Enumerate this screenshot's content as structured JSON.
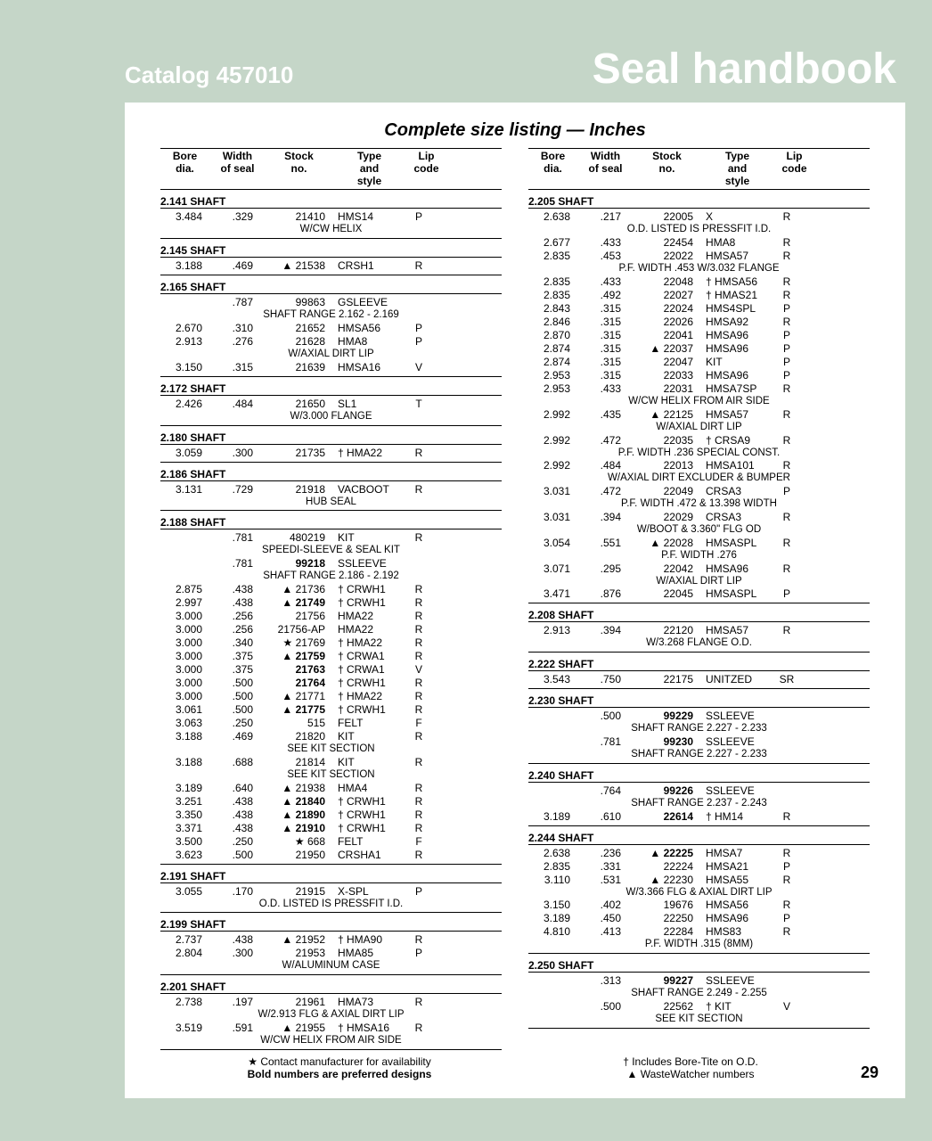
{
  "header": {
    "catalog": "Catalog 457010",
    "title": "Seal handbook"
  },
  "section_title": "Complete size listing — Inches",
  "page_number": "29",
  "columns_header": {
    "c1": "Bore\ndia.",
    "c2": "Width\nof seal",
    "c3": "Stock\nno.",
    "c4": "Type\nand\nstyle",
    "c5": "Lip\ncode"
  },
  "legend": {
    "star": "★ Contact manufacturer for availability",
    "bold": "Bold numbers are preferred designs",
    "dagger": "† Includes Bore-Tite on O.D.",
    "triangle": "▲ WasteWatcher numbers"
  },
  "left": [
    {
      "title": "2.141 SHAFT",
      "rows": [
        {
          "b": "3.484",
          "w": ".329",
          "s": "21410",
          "t": "HMS14",
          "l": "P"
        },
        {
          "note": "W/CW HELIX"
        }
      ]
    },
    {
      "title": "2.145 SHAFT",
      "rows": [
        {
          "b": "3.188",
          "w": ".469",
          "s": "▲ 21538",
          "t": "CRSH1",
          "l": "R"
        }
      ]
    },
    {
      "title": "2.165 SHAFT",
      "rows": [
        {
          "b": "",
          "w": ".787",
          "s": "99863",
          "t": "GSLEEVE",
          "l": ""
        },
        {
          "note": "SHAFT RANGE 2.162 - 2.169"
        },
        {
          "b": "2.670",
          "w": ".310",
          "s": "21652",
          "t": "HMSA56",
          "l": "P"
        },
        {
          "b": "2.913",
          "w": ".276",
          "s": "21628",
          "t": "HMA8",
          "l": "P"
        },
        {
          "note": "W/AXIAL DIRT LIP"
        },
        {
          "b": "3.150",
          "w": ".315",
          "s": "21639",
          "t": "HMSA16",
          "l": "V"
        }
      ]
    },
    {
      "title": "2.172 SHAFT",
      "rows": [
        {
          "b": "2.426",
          "w": ".484",
          "s": "21650",
          "t": "SL1",
          "l": "T"
        },
        {
          "note": "W/3.000 FLANGE"
        }
      ]
    },
    {
      "title": "2.180 SHAFT",
      "rows": [
        {
          "b": "3.059",
          "w": ".300",
          "s": "21735",
          "t": "† HMA22",
          "l": "R"
        }
      ]
    },
    {
      "title": "2.186 SHAFT",
      "rows": [
        {
          "b": "3.131",
          "w": ".729",
          "s": "21918",
          "t": "VACBOOT",
          "l": "R"
        },
        {
          "note": "HUB SEAL"
        }
      ]
    },
    {
      "title": "2.188 SHAFT",
      "rows": [
        {
          "b": "",
          "w": ".781",
          "s": "480219",
          "t": "KIT",
          "l": "R"
        },
        {
          "note": "SPEEDI-SLEEVE & SEAL KIT"
        },
        {
          "b": "",
          "w": ".781",
          "s": "99218",
          "t": "SSLEEVE",
          "l": "",
          "sbold": true
        },
        {
          "note": "SHAFT RANGE 2.186 - 2.192"
        },
        {
          "b": "2.875",
          "w": ".438",
          "s": "▲ 21736",
          "t": "† CRWH1",
          "l": "R"
        },
        {
          "b": "2.997",
          "w": ".438",
          "s": "▲ 21749",
          "t": "† CRWH1",
          "l": "R",
          "sbold": true
        },
        {
          "b": "3.000",
          "w": ".256",
          "s": "21756",
          "t": "HMA22",
          "l": "R"
        },
        {
          "b": "3.000",
          "w": ".256",
          "s": "21756-AP",
          "t": "HMA22",
          "l": "R"
        },
        {
          "b": "3.000",
          "w": ".340",
          "s": "★ 21769",
          "t": "† HMA22",
          "l": "R"
        },
        {
          "b": "3.000",
          "w": ".375",
          "s": "▲ 21759",
          "t": "† CRWA1",
          "l": "R",
          "sbold": true
        },
        {
          "b": "3.000",
          "w": ".375",
          "s": "21763",
          "t": "† CRWA1",
          "l": "V",
          "sbold": true
        },
        {
          "b": "3.000",
          "w": ".500",
          "s": "21764",
          "t": "† CRWH1",
          "l": "R",
          "sbold": true
        },
        {
          "b": "3.000",
          "w": ".500",
          "s": "▲ 21771",
          "t": "† HMA22",
          "l": "R"
        },
        {
          "b": "3.061",
          "w": ".500",
          "s": "▲ 21775",
          "t": "† CRWH1",
          "l": "R",
          "sbold": true
        },
        {
          "b": "3.063",
          "w": ".250",
          "s": "515",
          "t": "FELT",
          "l": "F"
        },
        {
          "b": "3.188",
          "w": ".469",
          "s": "21820",
          "t": "KIT",
          "l": "R"
        },
        {
          "note": "SEE KIT SECTION"
        },
        {
          "b": "3.188",
          "w": ".688",
          "s": "21814",
          "t": "KIT",
          "l": "R"
        },
        {
          "note": "SEE KIT SECTION"
        },
        {
          "b": "3.189",
          "w": ".640",
          "s": "▲ 21938",
          "t": "HMA4",
          "l": "R"
        },
        {
          "b": "3.251",
          "w": ".438",
          "s": "▲ 21840",
          "t": "† CRWH1",
          "l": "R",
          "sbold": true
        },
        {
          "b": "3.350",
          "w": ".438",
          "s": "▲ 21890",
          "t": "† CRWH1",
          "l": "R",
          "sbold": true
        },
        {
          "b": "3.371",
          "w": ".438",
          "s": "▲ 21910",
          "t": "† CRWH1",
          "l": "R",
          "sbold": true
        },
        {
          "b": "3.500",
          "w": ".250",
          "s": "★ 668",
          "t": "FELT",
          "l": "F"
        },
        {
          "b": "3.623",
          "w": ".500",
          "s": "21950",
          "t": "CRSHA1",
          "l": "R"
        }
      ]
    },
    {
      "title": "2.191 SHAFT",
      "rows": [
        {
          "b": "3.055",
          "w": ".170",
          "s": "21915",
          "t": "X-SPL",
          "l": "P"
        },
        {
          "note": "O.D. LISTED IS PRESSFIT I.D."
        }
      ]
    },
    {
      "title": "2.199 SHAFT",
      "rows": [
        {
          "b": "2.737",
          "w": ".438",
          "s": "▲ 21952",
          "t": "† HMA90",
          "l": "R"
        },
        {
          "b": "2.804",
          "w": ".300",
          "s": "21953",
          "t": "HMA85",
          "l": "P"
        },
        {
          "note": "W/ALUMINUM CASE"
        }
      ]
    },
    {
      "title": "2.201 SHAFT",
      "rows": [
        {
          "b": "2.738",
          "w": ".197",
          "s": "21961",
          "t": "HMA73",
          "l": "R"
        },
        {
          "note": "W/2.913 FLG & AXIAL DIRT LIP"
        },
        {
          "b": "3.519",
          "w": ".591",
          "s": "▲ 21955",
          "t": "† HMSA16",
          "l": "R"
        },
        {
          "note": "W/CW HELIX FROM AIR SIDE"
        }
      ]
    }
  ],
  "right": [
    {
      "title": "2.205 SHAFT",
      "rows": [
        {
          "b": "2.638",
          "w": ".217",
          "s": "22005",
          "t": "X",
          "l": "R"
        },
        {
          "note": "O.D. LISTED IS PRESSFIT I.D."
        },
        {
          "b": "2.677",
          "w": ".433",
          "s": "22454",
          "t": "HMA8",
          "l": "R"
        },
        {
          "b": "2.835",
          "w": ".453",
          "s": "22022",
          "t": "HMSA57",
          "l": "R"
        },
        {
          "note": "P.F. WIDTH .453 W/3.032 FLANGE"
        },
        {
          "b": "2.835",
          "w": ".433",
          "s": "22048",
          "t": "† HMSA56",
          "l": "R"
        },
        {
          "b": "2.835",
          "w": ".492",
          "s": "22027",
          "t": "† HMAS21",
          "l": "R"
        },
        {
          "b": "2.843",
          "w": ".315",
          "s": "22024",
          "t": "HMS4SPL",
          "l": "P"
        },
        {
          "b": "2.846",
          "w": ".315",
          "s": "22026",
          "t": "HMSA92",
          "l": "R"
        },
        {
          "b": "2.870",
          "w": ".315",
          "s": "22041",
          "t": "HMSA96",
          "l": "P"
        },
        {
          "b": "2.874",
          "w": ".315",
          "s": "▲ 22037",
          "t": "HMSA96",
          "l": "P"
        },
        {
          "b": "2.874",
          "w": ".315",
          "s": "22047",
          "t": "KIT",
          "l": "P"
        },
        {
          "b": "2.953",
          "w": ".315",
          "s": "22033",
          "t": "HMSA96",
          "l": "P"
        },
        {
          "b": "2.953",
          "w": ".433",
          "s": "22031",
          "t": "HMSA7SP",
          "l": "R"
        },
        {
          "note": "W/CW HELIX FROM AIR SIDE"
        },
        {
          "b": "2.992",
          "w": ".435",
          "s": "▲ 22125",
          "t": "HMSA57",
          "l": "R"
        },
        {
          "note": "W/AXIAL DIRT LIP"
        },
        {
          "b": "2.992",
          "w": ".472",
          "s": "22035",
          "t": "† CRSA9",
          "l": "R"
        },
        {
          "note": "P.F. WIDTH .236 SPECIAL CONST."
        },
        {
          "b": "2.992",
          "w": ".484",
          "s": "22013",
          "t": "HMSA101",
          "l": "R"
        },
        {
          "note": "W/AXIAL DIRT EXCLUDER & BUMPER"
        },
        {
          "b": "3.031",
          "w": ".472",
          "s": "22049",
          "t": "CRSA3",
          "l": "P"
        },
        {
          "note": "P.F. WIDTH .472 & 13.398 WIDTH"
        },
        {
          "b": "3.031",
          "w": ".394",
          "s": "22029",
          "t": "CRSA3",
          "l": "R"
        },
        {
          "note": "W/BOOT & 3.360\" FLG OD"
        },
        {
          "b": "3.054",
          "w": ".551",
          "s": "▲ 22028",
          "t": "HMSASPL",
          "l": "R"
        },
        {
          "note": "P.F. WIDTH .276"
        },
        {
          "b": "3.071",
          "w": ".295",
          "s": "22042",
          "t": "HMSA96",
          "l": "R"
        },
        {
          "note": "W/AXIAL DIRT LIP"
        },
        {
          "b": "3.471",
          "w": ".876",
          "s": "22045",
          "t": "HMSASPL",
          "l": "P"
        }
      ]
    },
    {
      "title": "2.208 SHAFT",
      "rows": [
        {
          "b": "2.913",
          "w": ".394",
          "s": "22120",
          "t": "HMSA57",
          "l": "R"
        },
        {
          "note": "W/3.268 FLANGE O.D."
        }
      ]
    },
    {
      "title": "2.222 SHAFT",
      "rows": [
        {
          "b": "3.543",
          "w": ".750",
          "s": "22175",
          "t": "UNITZED",
          "l": "SR"
        }
      ]
    },
    {
      "title": "2.230 SHAFT",
      "rows": [
        {
          "b": "",
          "w": ".500",
          "s": "99229",
          "t": "SSLEEVE",
          "l": "",
          "sbold": true
        },
        {
          "note": "SHAFT RANGE 2.227 - 2.233"
        },
        {
          "b": "",
          "w": ".781",
          "s": "99230",
          "t": "SSLEEVE",
          "l": "",
          "sbold": true
        },
        {
          "note": "SHAFT RANGE 2.227 - 2.233"
        }
      ]
    },
    {
      "title": "2.240 SHAFT",
      "rows": [
        {
          "b": "",
          "w": ".764",
          "s": "99226",
          "t": "SSLEEVE",
          "l": "",
          "sbold": true
        },
        {
          "note": "SHAFT RANGE 2.237 - 2.243"
        },
        {
          "b": "3.189",
          "w": ".610",
          "s": "22614",
          "t": "† HM14",
          "l": "R",
          "sbold": true
        }
      ]
    },
    {
      "title": "2.244 SHAFT",
      "rows": [
        {
          "b": "2.638",
          "w": ".236",
          "s": "▲ 22225",
          "t": "HMSA7",
          "l": "R",
          "sbold": true
        },
        {
          "b": "2.835",
          "w": ".331",
          "s": "22224",
          "t": "HMSA21",
          "l": "P"
        },
        {
          "b": "3.110",
          "w": ".531",
          "s": "▲ 22230",
          "t": "HMSA55",
          "l": "R"
        },
        {
          "note": "W/3.366 FLG & AXIAL DIRT LIP"
        },
        {
          "b": "3.150",
          "w": ".402",
          "s": "19676",
          "t": "HMSA56",
          "l": "R"
        },
        {
          "b": "3.189",
          "w": ".450",
          "s": "22250",
          "t": "HMSA96",
          "l": "P"
        },
        {
          "b": "4.810",
          "w": ".413",
          "s": "22284",
          "t": "HMS83",
          "l": "R"
        },
        {
          "note": "P.F.  WIDTH .315 (8MM)"
        }
      ]
    },
    {
      "title": "2.250 SHAFT",
      "rows": [
        {
          "b": "",
          "w": ".313",
          "s": "99227",
          "t": "SSLEEVE",
          "l": "",
          "sbold": true
        },
        {
          "note": "SHAFT RANGE 2.249 - 2.255"
        },
        {
          "b": "",
          "w": ".500",
          "s": "22562",
          "t": "† KIT",
          "l": "V"
        },
        {
          "note": "SEE KIT SECTION"
        }
      ]
    }
  ]
}
